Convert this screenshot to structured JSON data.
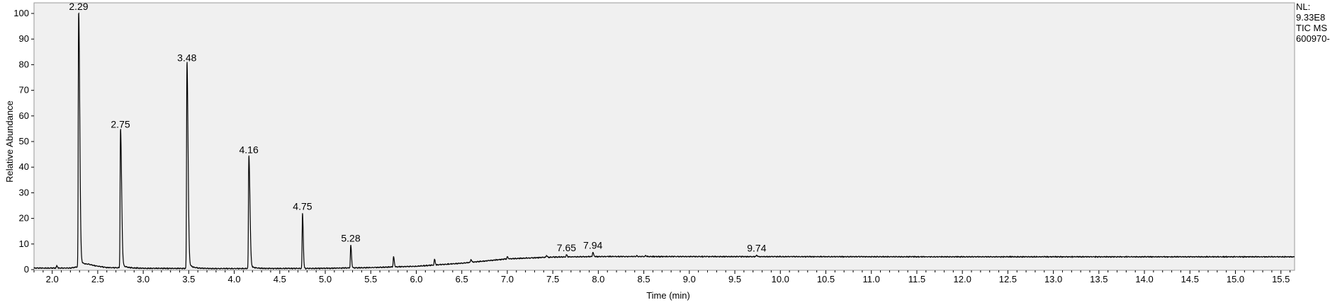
{
  "chart_data": {
    "type": "line",
    "xlabel": "Time (min)",
    "ylabel": "Relative Abundance",
    "xlim": [
      1.8,
      15.65
    ],
    "ylim": [
      0,
      100
    ],
    "x_ticks": [
      2.0,
      2.5,
      3.0,
      3.5,
      4.0,
      4.5,
      5.0,
      5.5,
      6.0,
      6.5,
      7.0,
      7.5,
      8.0,
      8.5,
      9.0,
      9.5,
      10.0,
      10.5,
      11.0,
      11.5,
      12.0,
      12.5,
      13.0,
      13.5,
      14.0,
      14.5,
      15.0,
      15.5
    ],
    "x_tick_labels": [
      "2.0",
      "2.5",
      "3.0",
      "3.5",
      "4.0",
      "4.5",
      "5.0",
      "5.5",
      "6.0",
      "6.5",
      "7.0",
      "7.5",
      "8.0",
      "8.5",
      "9.0",
      "9.5",
      "10.0",
      "10.5",
      "11.0",
      "11.5",
      "12.0",
      "12.5",
      "13.0",
      "13.5",
      "14.0",
      "14.5",
      "15.0",
      "15.5"
    ],
    "y_ticks": [
      0,
      10,
      20,
      30,
      40,
      50,
      60,
      70,
      80,
      90,
      100
    ],
    "y_tick_labels": [
      "0",
      "10",
      "20",
      "30",
      "40",
      "50",
      "60",
      "70",
      "80",
      "90",
      "100"
    ],
    "grid": false,
    "line_color": "#000000",
    "plot_background": "#f0f0f0",
    "peaks": [
      {
        "x": 2.29,
        "y": 100,
        "label": "2.29"
      },
      {
        "x": 2.75,
        "y": 54,
        "label": "2.75"
      },
      {
        "x": 3.48,
        "y": 80,
        "label": "3.48"
      },
      {
        "x": 4.16,
        "y": 44,
        "label": "4.16"
      },
      {
        "x": 4.75,
        "y": 22,
        "label": "4.75"
      },
      {
        "x": 5.28,
        "y": 9.5,
        "label": "5.28"
      },
      {
        "x": 7.65,
        "y": 5.8,
        "label": "7.65"
      },
      {
        "x": 7.94,
        "y": 6.8,
        "label": "7.94"
      },
      {
        "x": 9.74,
        "y": 5.6,
        "label": "9.74"
      }
    ],
    "minor_peaks": [
      {
        "x": 2.05,
        "y": 1.5
      },
      {
        "x": 5.75,
        "y": 5.0
      },
      {
        "x": 6.2,
        "y": 4.0
      },
      {
        "x": 6.6,
        "y": 4.0
      },
      {
        "x": 7.0,
        "y": 5.0
      },
      {
        "x": 7.43,
        "y": 5.5
      },
      {
        "x": 8.42,
        "y": 5.4
      },
      {
        "x": 8.52,
        "y": 5.5
      }
    ],
    "baseline": [
      {
        "x": 1.8,
        "y": 0.6
      },
      {
        "x": 2.2,
        "y": 0.6
      },
      {
        "x": 2.4,
        "y": 1.8
      },
      {
        "x": 2.6,
        "y": 0.8
      },
      {
        "x": 3.0,
        "y": 0.5
      },
      {
        "x": 4.0,
        "y": 0.4
      },
      {
        "x": 5.0,
        "y": 0.5
      },
      {
        "x": 5.5,
        "y": 0.8
      },
      {
        "x": 6.0,
        "y": 1.3
      },
      {
        "x": 6.5,
        "y": 2.5
      },
      {
        "x": 7.0,
        "y": 4.2
      },
      {
        "x": 7.5,
        "y": 4.9
      },
      {
        "x": 8.0,
        "y": 5.1
      },
      {
        "x": 9.0,
        "y": 5.1
      },
      {
        "x": 12.0,
        "y": 5.0
      },
      {
        "x": 15.65,
        "y": 5.0
      }
    ],
    "info": [
      "NL:",
      "9.33E8",
      "TIC  MS",
      "600970-"
    ]
  }
}
